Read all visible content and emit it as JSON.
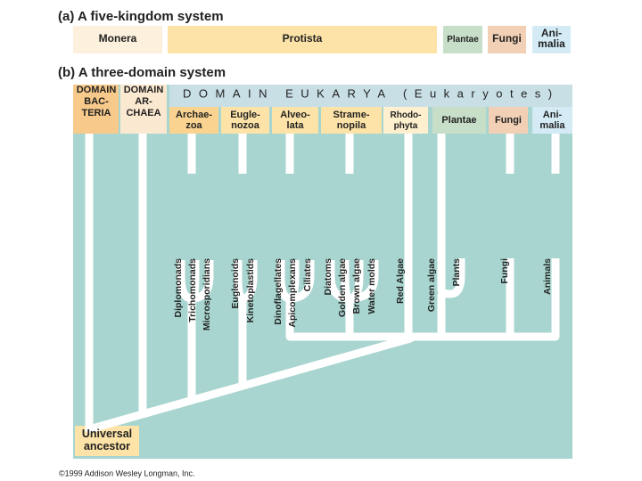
{
  "part_a": {
    "title": "(a) A five-kingdom system",
    "kingdoms": [
      {
        "lines": [
          "Monera"
        ]
      },
      {
        "lines": [
          "Protista"
        ]
      },
      {
        "lines": [
          "Plantae"
        ]
      },
      {
        "lines": [
          "Fungi"
        ]
      },
      {
        "lines": [
          "Ani-",
          "malia"
        ]
      }
    ]
  },
  "part_b": {
    "title": "(b) A three-domain system",
    "domains": [
      {
        "lines": [
          "DOMAIN",
          "BAC-",
          "TERIA"
        ]
      },
      {
        "lines": [
          "DOMAIN",
          "AR-",
          "CHAEA"
        ]
      },
      {
        "lines": [
          "DOMAIN EUKARYA (Eukaryotes)"
        ]
      }
    ],
    "groups": [
      {
        "lines": [
          "Archae-",
          "zoa"
        ]
      },
      {
        "lines": [
          "Eugle-",
          "nozoa"
        ]
      },
      {
        "lines": [
          "Alveo-",
          "lata"
        ]
      },
      {
        "lines": [
          "Strame-",
          "nopila"
        ]
      },
      {
        "lines": [
          "Rhodo-",
          "phyta"
        ]
      },
      {
        "lines": [
          "Plantae"
        ]
      },
      {
        "lines": [
          "Fungi"
        ]
      },
      {
        "lines": [
          "Ani-",
          "malia"
        ]
      }
    ],
    "leaves": [
      "Diplomonads",
      "Trichomonads",
      "Microsporidians",
      "Euglenoids",
      "Kinetoplastids",
      "Dinoflagellates",
      "Apicomplexans",
      "Ciliates",
      "Diatoms",
      "Golden algae",
      "Brown algae",
      "Water molds",
      "Red Algae",
      "Green algae",
      "Plants",
      "Fungi",
      "Animals"
    ],
    "root": {
      "lines": [
        "Universal",
        "ancestor"
      ]
    }
  },
  "copyright": "©1999 Addison Wesley Longman, Inc."
}
